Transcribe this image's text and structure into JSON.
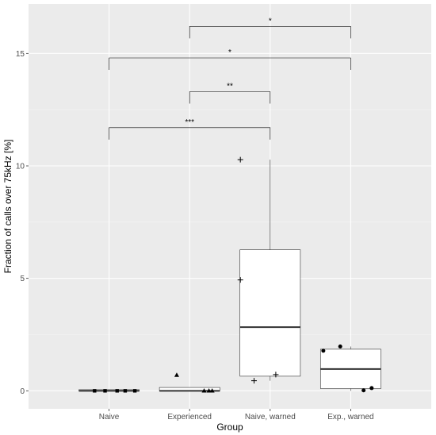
{
  "chart_data": {
    "type": "boxplot",
    "xlabel": "Group",
    "ylabel": "Fraction of calls over 75kHz [%]",
    "ylim": [
      -0.8,
      17.2
    ],
    "y_ticks": [
      0,
      5,
      10,
      15
    ],
    "grid": true,
    "background": "#ebebeb",
    "categories": [
      "Naive",
      "Experienced",
      "Naive, warned",
      "Exp., warned"
    ],
    "boxes": [
      {
        "q1": 0.0,
        "median": 0.0,
        "q3": 0.05,
        "whisker_low": 0.0,
        "whisker_high": 0.05
      },
      {
        "q1": 0.0,
        "median": 0.0,
        "q3": 0.15,
        "whisker_low": 0.0,
        "whisker_high": 0.15
      },
      {
        "q1": 0.65,
        "median": 2.83,
        "q3": 6.27,
        "whisker_low": 0.45,
        "whisker_high": 10.28
      },
      {
        "q1": 0.1,
        "median": 0.97,
        "q3": 1.85,
        "whisker_low": 0.0,
        "whisker_high": 1.97
      }
    ],
    "points": [
      {
        "group": 0,
        "shape": "square",
        "values": [
          0.0,
          0.0,
          0.0,
          0.0,
          0.0
        ],
        "offsets": [
          -0.18,
          0.1,
          0.2,
          0.32,
          -0.05
        ]
      },
      {
        "group": 1,
        "shape": "triangle",
        "values": [
          0.7,
          0.0,
          0.0,
          0.0
        ],
        "offsets": [
          -0.16,
          0.18,
          0.24,
          0.28
        ]
      },
      {
        "group": 2,
        "shape": "cross",
        "values": [
          10.28,
          4.93,
          0.72,
          0.45
        ],
        "offsets": [
          -0.37,
          -0.37,
          0.07,
          -0.2
        ]
      },
      {
        "group": 3,
        "shape": "circle",
        "values": [
          1.78,
          1.97,
          0.02,
          0.12
        ],
        "offsets": [
          -0.34,
          -0.13,
          0.16,
          0.26
        ]
      }
    ],
    "significance": [
      {
        "from": 1,
        "to": 3,
        "y": 16.2,
        "label": "*"
      },
      {
        "from": 0,
        "to": 3,
        "y": 14.8,
        "label": "*"
      },
      {
        "from": 1,
        "to": 2,
        "y": 13.3,
        "label": "**"
      },
      {
        "from": 0,
        "to": 2,
        "y": 11.7,
        "label": "***"
      }
    ]
  }
}
